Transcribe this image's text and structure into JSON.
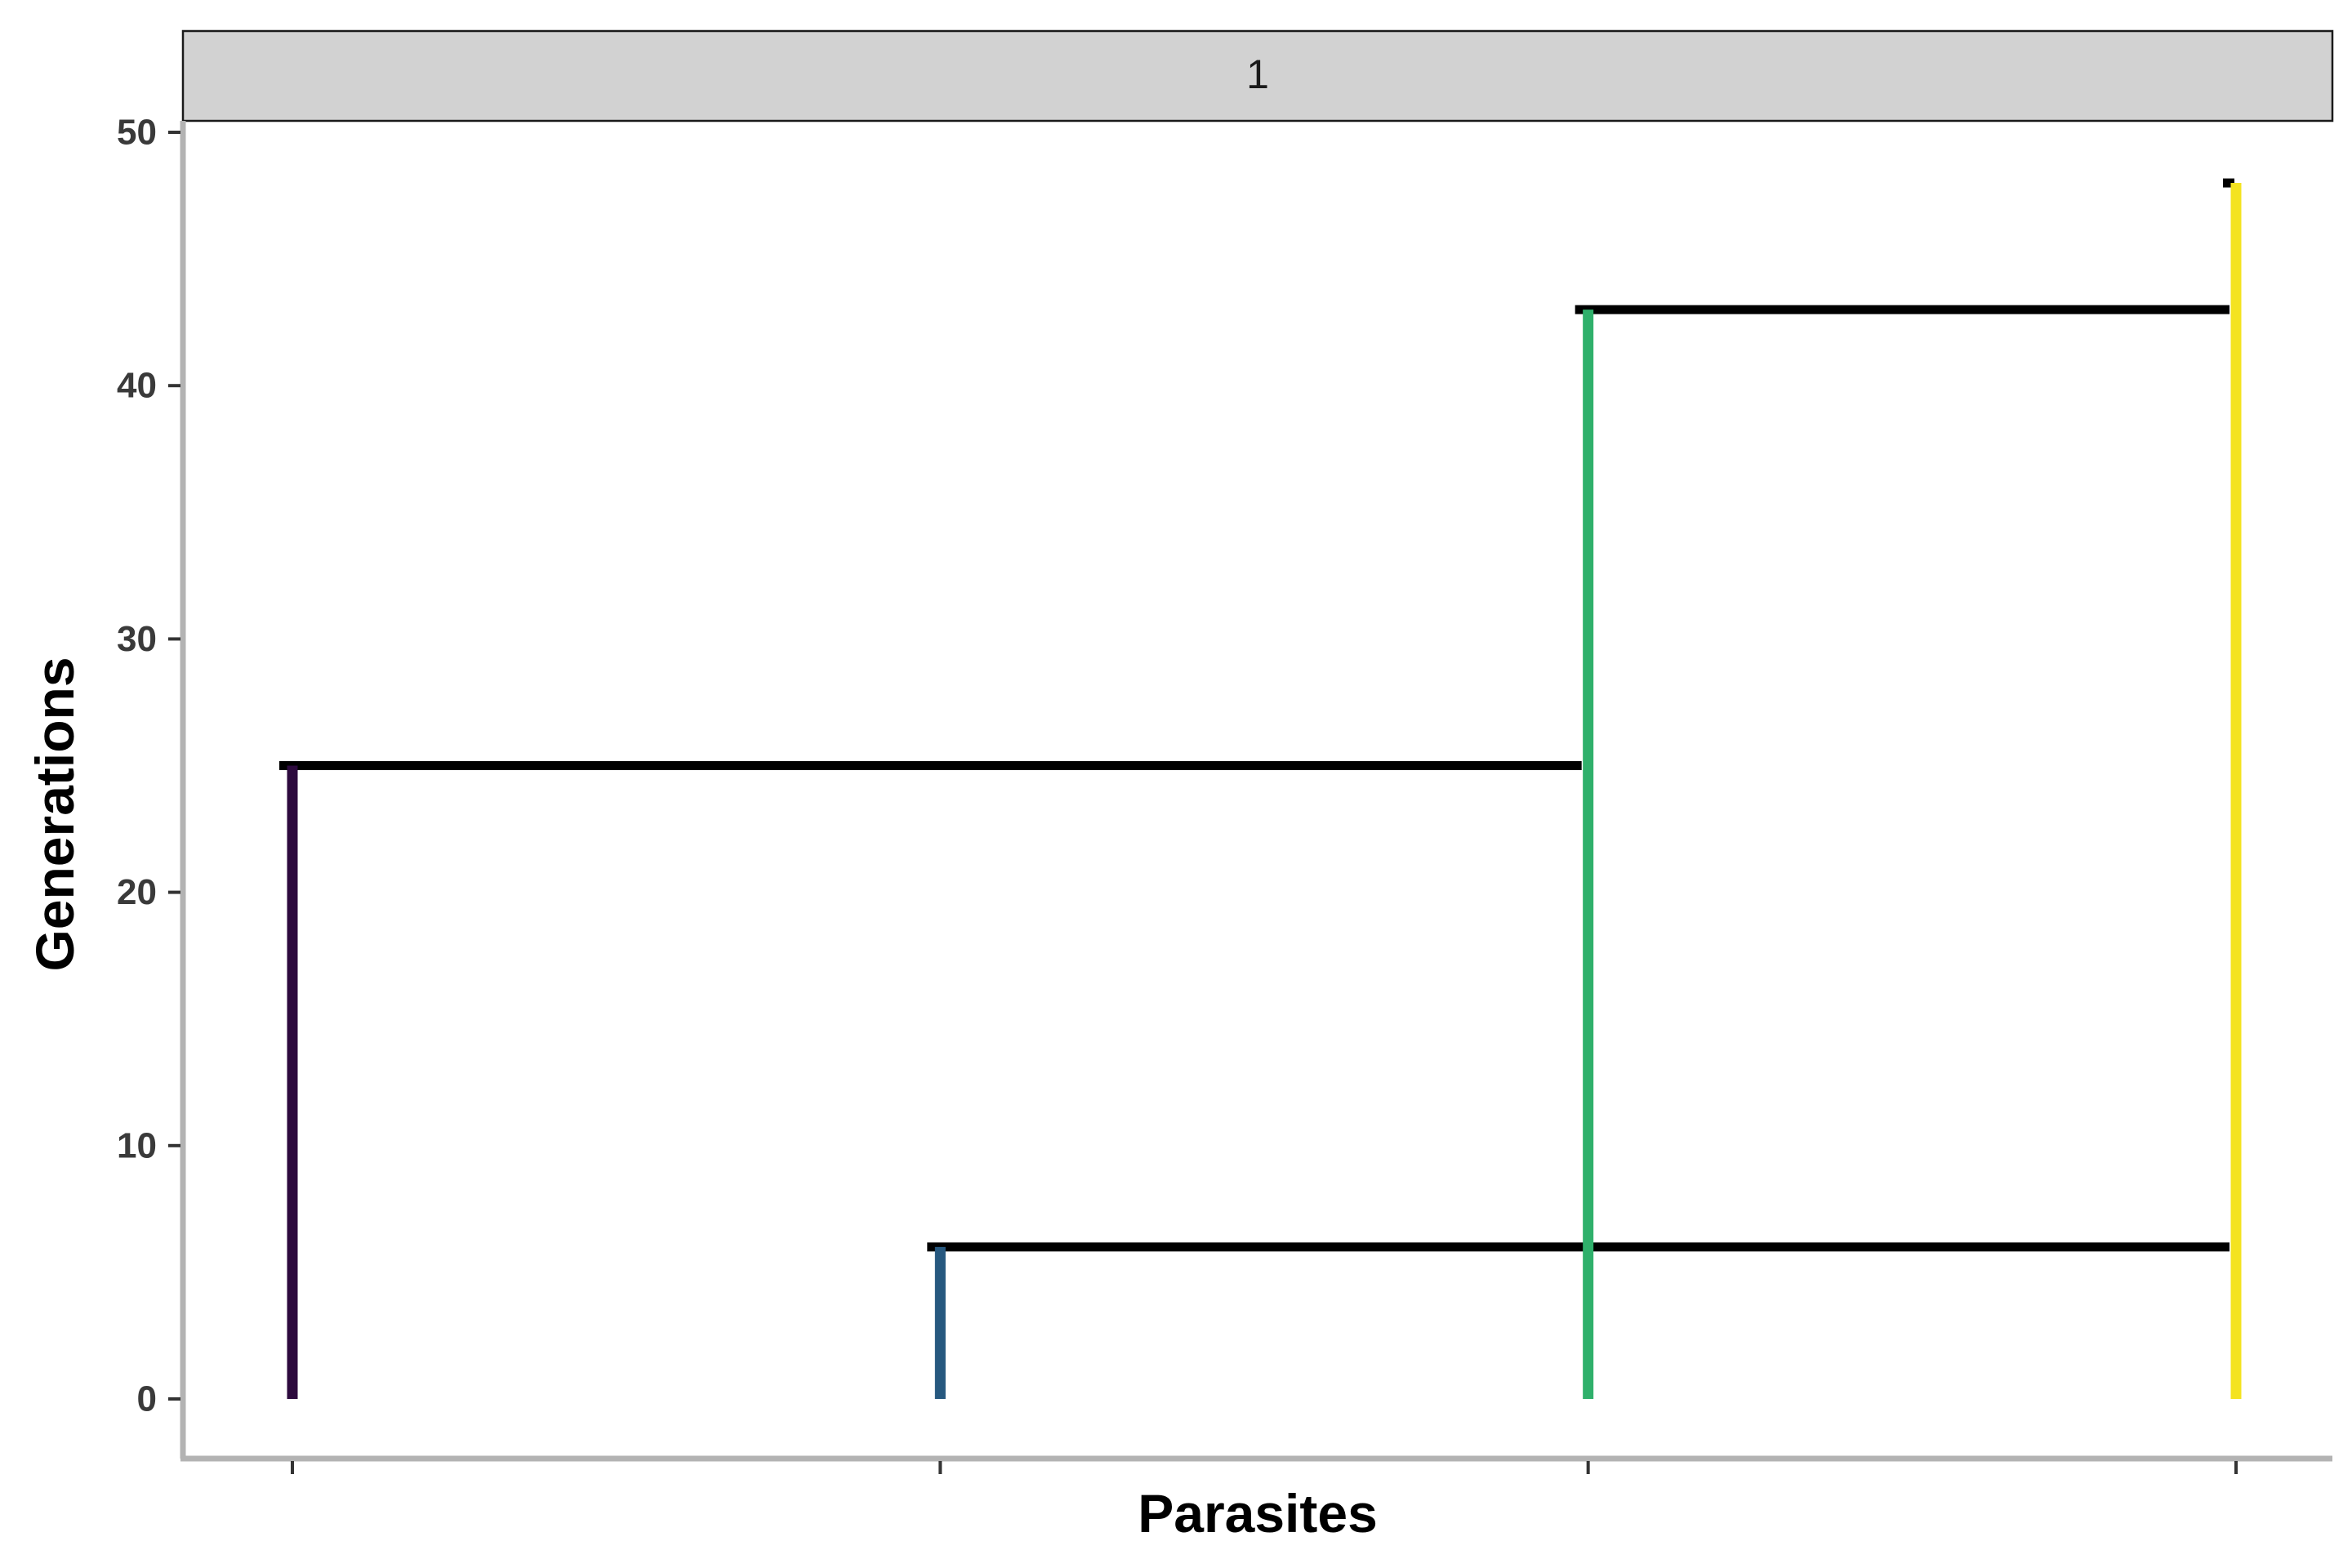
{
  "chart_data": {
    "type": "line",
    "facet_label": "1",
    "xlabel": "Parasites",
    "ylabel": "Generations",
    "ylim": [
      0,
      50
    ],
    "yticks": [
      0,
      10,
      20,
      30,
      40,
      50
    ],
    "xticks": [
      1,
      2,
      3,
      4
    ],
    "x_tick_labels_shown": false,
    "grid": false,
    "legend": "none",
    "colors": {
      "background": "#ffffff",
      "strip_fill": "#d2d2d2",
      "strip_border": "#1a1a1a",
      "axis_line": "#b3b3b3",
      "tick_label": "#3a3a3a",
      "connector": "#000000"
    },
    "lineages": [
      {
        "x": 1,
        "start": 0,
        "end": 25,
        "color": "#2d0a3e"
      },
      {
        "x": 2,
        "start": 0,
        "end": 6,
        "color": "#26587f"
      },
      {
        "x": 3,
        "start": 0,
        "end": 43,
        "color": "#2fb06b"
      },
      {
        "x": 4,
        "start": 0,
        "end": 48,
        "color": "#f4e320"
      }
    ],
    "connectors": [
      {
        "y": 25,
        "x_from": 1,
        "x_to": 3
      },
      {
        "y": 6,
        "x_from": 2,
        "x_to": 4
      },
      {
        "y": 43,
        "x_from": 3,
        "x_to": 4
      }
    ],
    "root_marker": {
      "x": 4,
      "y": 48
    }
  }
}
